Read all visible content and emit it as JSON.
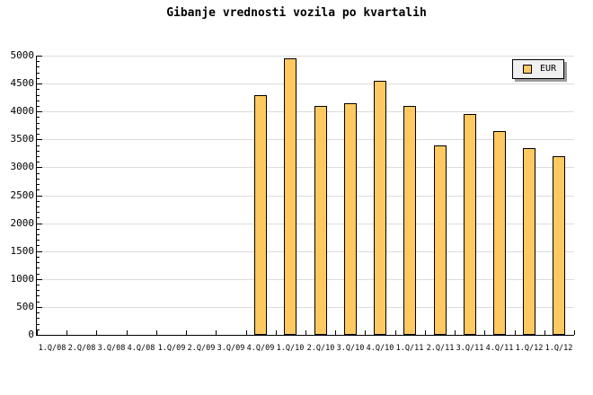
{
  "chart_data": {
    "type": "bar",
    "title": "Gibanje vrednosti vozila po kvartalih",
    "categories": [
      "1.Q/08",
      "2.Q/08",
      "3.Q/08",
      "4.Q/08",
      "1.Q/09",
      "2.Q/09",
      "3.Q/09",
      "4.Q/09",
      "1.Q/10",
      "2.Q/10",
      "3.Q/10",
      "4.Q/10",
      "1.Q/11",
      "2.Q/11",
      "3.Q/11",
      "4.Q/11",
      "1.Q/12",
      "1.Q/12"
    ],
    "series": [
      {
        "name": "EUR",
        "values": [
          null,
          null,
          null,
          null,
          null,
          null,
          null,
          4300,
          4950,
          4100,
          4150,
          4550,
          4100,
          3400,
          3950,
          3650,
          3350,
          3200
        ]
      }
    ],
    "xlabel": "",
    "ylabel": "",
    "ylim": [
      0,
      5000
    ],
    "ytick_step": 500,
    "ytick_minor_step": 100,
    "grid": true,
    "legend_position": "top-right"
  },
  "colors": {
    "bar_fill": "#FFC961",
    "bar_border": "#000000",
    "grid": "#DCDCDC",
    "axis": "#000000",
    "legend_bg": "#F0F0F0",
    "legend_shadow": "#9C9C9C",
    "background": "#FFFFFF",
    "text": "#000000"
  }
}
